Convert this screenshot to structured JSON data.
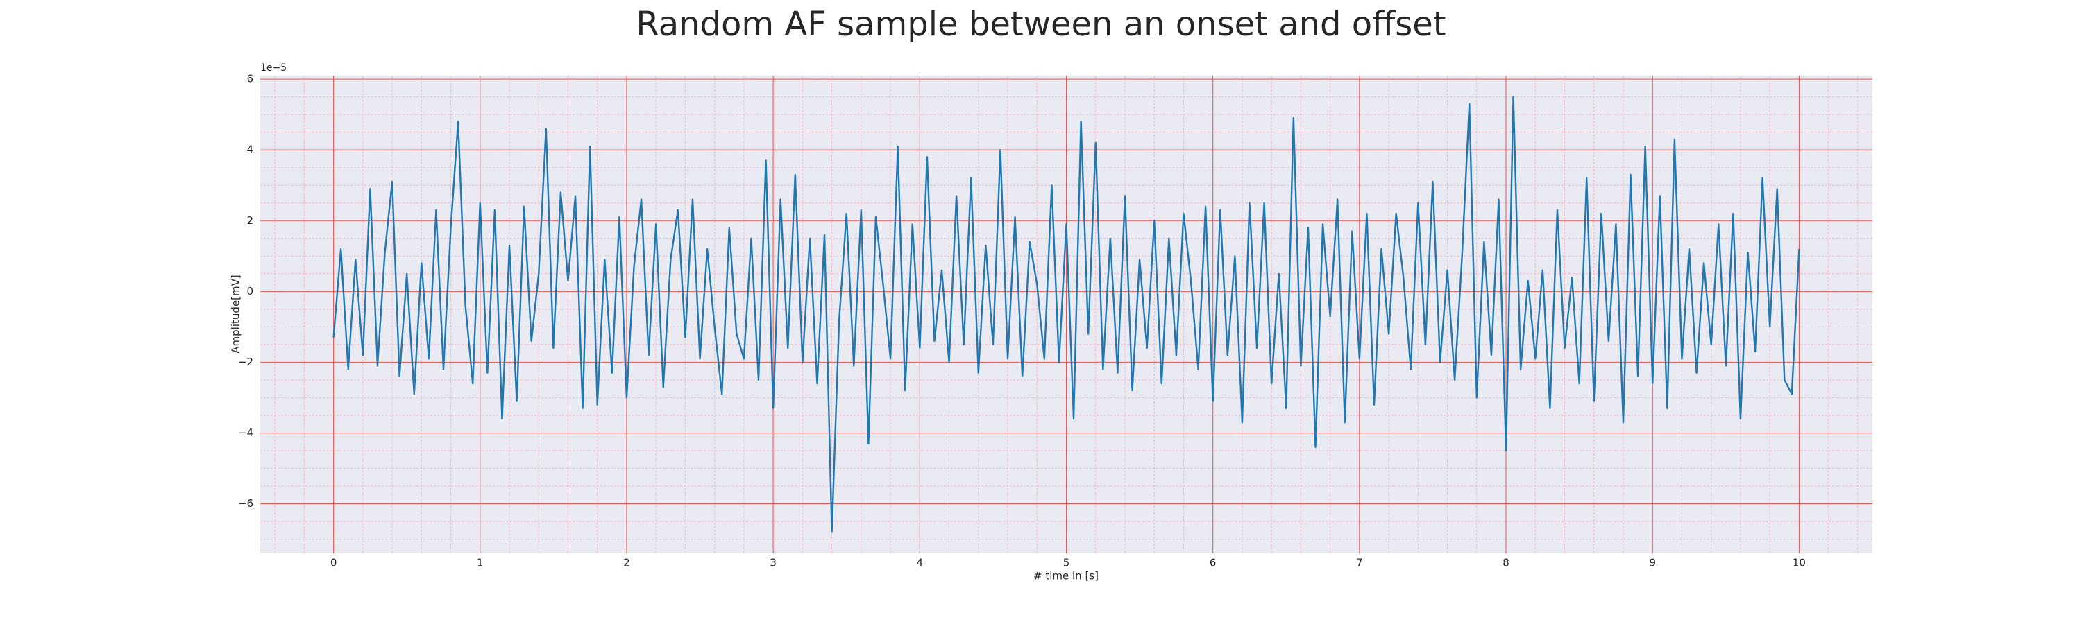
{
  "chart_data": {
    "type": "line",
    "title": "Random AF sample between an onset and offset",
    "xlabel": "# time in [s]",
    "ylabel": "Amplitude[mV]",
    "y_offset_label": "1e−5",
    "color": "#1f77b4",
    "grid": true,
    "minor_grid": true,
    "xlim": [
      -0.5,
      10.5
    ],
    "ylim": [
      -7.4,
      6.1
    ],
    "xticks": [
      0,
      1,
      2,
      3,
      4,
      5,
      6,
      7,
      8,
      9,
      10
    ],
    "yticks": [
      {
        "value": -6,
        "label": "−6"
      },
      {
        "value": -4,
        "label": "−4"
      },
      {
        "value": -2,
        "label": "−2"
      },
      0,
      2,
      4,
      6
    ],
    "x": [
      0,
      0.05,
      0.1,
      0.15,
      0.2,
      0.25,
      0.3,
      0.35,
      0.4,
      0.45,
      0.5,
      0.55,
      0.6,
      0.65,
      0.7,
      0.75,
      0.8,
      0.85,
      0.9,
      0.95,
      1,
      1.05,
      1.1,
      1.15,
      1.2,
      1.25,
      1.3,
      1.35,
      1.4,
      1.45,
      1.5,
      1.55,
      1.6,
      1.65,
      1.7,
      1.75,
      1.8,
      1.85,
      1.9,
      1.95,
      2,
      2.05,
      2.1,
      2.15,
      2.2,
      2.25,
      2.3,
      2.35,
      2.4,
      2.45,
      2.5,
      2.55,
      2.6,
      2.65,
      2.7,
      2.75,
      2.8,
      2.85,
      2.9,
      2.95,
      3,
      3.05,
      3.1,
      3.15,
      3.2,
      3.25,
      3.3,
      3.35,
      3.4,
      3.45,
      3.5,
      3.55,
      3.6,
      3.65,
      3.7,
      3.75,
      3.8,
      3.85,
      3.9,
      3.95,
      4,
      4.05,
      4.1,
      4.15,
      4.2,
      4.25,
      4.3,
      4.35,
      4.4,
      4.45,
      4.5,
      4.55,
      4.6,
      4.65,
      4.7,
      4.75,
      4.8,
      4.85,
      4.9,
      4.95,
      5,
      5.05,
      5.1,
      5.15,
      5.2,
      5.25,
      5.3,
      5.35,
      5.4,
      5.45,
      5.5,
      5.55,
      5.6,
      5.65,
      5.7,
      5.75,
      5.8,
      5.85,
      5.9,
      5.95,
      6,
      6.05,
      6.1,
      6.15,
      6.2,
      6.25,
      6.3,
      6.35,
      6.4,
      6.45,
      6.5,
      6.55,
      6.6,
      6.65,
      6.7,
      6.75,
      6.8,
      6.85,
      6.9,
      6.95,
      7,
      7.05,
      7.1,
      7.15,
      7.2,
      7.25,
      7.3,
      7.35,
      7.4,
      7.45,
      7.5,
      7.55,
      7.6,
      7.65,
      7.7,
      7.75,
      7.8,
      7.85,
      7.9,
      7.95,
      8,
      8.05,
      8.1,
      8.15,
      8.2,
      8.25,
      8.3,
      8.35,
      8.4,
      8.45,
      8.5,
      8.55,
      8.6,
      8.65,
      8.7,
      8.75,
      8.8,
      8.85,
      8.9,
      8.95,
      9,
      9.05,
      9.1,
      9.15,
      9.2,
      9.25,
      9.3,
      9.35,
      9.4,
      9.45,
      9.5,
      9.55,
      9.6,
      9.65,
      9.7,
      9.75,
      9.8,
      9.85,
      9.9,
      9.95,
      10
    ],
    "values": [
      -1.3,
      1.2,
      -2.2,
      0.9,
      -1.8,
      2.9,
      -2.1,
      1.1,
      3.1,
      -2.4,
      0.5,
      -2.9,
      0.8,
      -1.9,
      2.3,
      -2.2,
      1.8,
      4.8,
      -0.4,
      -2.6,
      2.5,
      -2.3,
      2.3,
      -3.6,
      1.3,
      -3.1,
      2.4,
      -1.4,
      0.5,
      4.6,
      -1.6,
      2.8,
      0.3,
      2.7,
      -3.3,
      4.1,
      -3.2,
      0.9,
      -2.3,
      2.1,
      -3.0,
      0.7,
      2.6,
      -1.8,
      1.9,
      -2.7,
      0.9,
      2.3,
      -1.3,
      2.6,
      -1.9,
      1.2,
      -1.0,
      -2.9,
      1.8,
      -1.2,
      -1.9,
      1.5,
      -2.5,
      3.7,
      -3.3,
      2.6,
      -1.6,
      3.3,
      -2.0,
      1.5,
      -2.6,
      1.6,
      -6.8,
      -0.8,
      2.2,
      -2.1,
      2.3,
      -4.3,
      2.1,
      0.2,
      -1.9,
      4.1,
      -2.8,
      1.9,
      -1.6,
      3.8,
      -1.4,
      0.6,
      -2.0,
      2.7,
      -1.5,
      3.2,
      -2.3,
      1.3,
      -1.5,
      4.0,
      -1.9,
      2.1,
      -2.4,
      1.4,
      0.2,
      -1.9,
      3.0,
      -2.0,
      1.9,
      -3.6,
      4.8,
      -1.2,
      4.2,
      -2.2,
      1.5,
      -2.3,
      2.7,
      -2.8,
      0.9,
      -1.6,
      2.0,
      -2.6,
      1.5,
      -1.8,
      2.2,
      0.3,
      -2.2,
      2.4,
      -3.1,
      2.3,
      -1.8,
      1.0,
      -3.7,
      2.5,
      -1.6,
      2.5,
      -2.6,
      0.5,
      -3.3,
      4.9,
      -2.1,
      1.8,
      -4.4,
      1.9,
      -0.7,
      2.6,
      -3.7,
      1.7,
      -1.9,
      2.2,
      -3.2,
      1.2,
      -1.2,
      2.2,
      0.4,
      -2.2,
      2.5,
      -1.5,
      3.1,
      -2.0,
      0.6,
      -2.5,
      1.0,
      5.3,
      -3.0,
      1.4,
      -1.8,
      2.6,
      -4.5,
      5.5,
      -2.2,
      0.3,
      -1.9,
      0.6,
      -3.3,
      2.3,
      -1.6,
      0.4,
      -2.6,
      3.2,
      -3.1,
      2.2,
      -1.4,
      1.9,
      -3.7,
      3.3,
      -2.4,
      4.1,
      -2.6,
      2.7,
      -3.3,
      4.3,
      -1.9,
      1.2,
      -2.3,
      0.8,
      -1.5,
      1.9,
      -2.1,
      2.2,
      -3.6,
      1.1,
      -1.7,
      3.2,
      -1.0,
      2.9,
      -2.5,
      -2.9,
      1.2
    ]
  }
}
